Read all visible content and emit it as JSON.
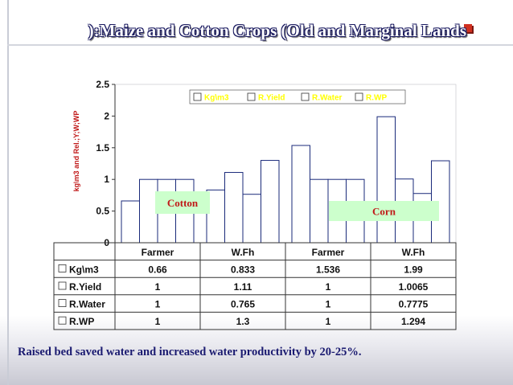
{
  "title": "):Maize and Cotton Crops (Old and Marginal Lands",
  "footer": "Raised bed saved water and increased water productivity by 20-25%.",
  "chart_data": {
    "type": "bar",
    "categories": [
      "Farmer",
      "W.Fh",
      "Farmer",
      "W.Fh"
    ],
    "series": [
      {
        "name": "Kg\\m3",
        "values": [
          0.66,
          0.833,
          1.536,
          1.99
        ]
      },
      {
        "name": "R.Yield",
        "values": [
          1,
          1.11,
          1,
          1.0065
        ]
      },
      {
        "name": "R.Water",
        "values": [
          1,
          0.765,
          1,
          0.7775
        ]
      },
      {
        "name": "R.WP",
        "values": [
          1,
          1.3,
          1,
          1.294
        ]
      }
    ],
    "value_labels": [
      [
        "0.66",
        "0.833",
        "1.536",
        "1.99"
      ],
      [
        "1",
        "1.11",
        "1",
        "1.0065"
      ],
      [
        "1",
        "0.765",
        "1",
        "0.7775"
      ],
      [
        "1",
        "1.3",
        "1",
        "1.294"
      ]
    ],
    "ylabel": "kg\\m3 and Rel.;Y;W;WP",
    "ylim": [
      0,
      2.5
    ],
    "yticks": [
      "0",
      "0.5",
      "1",
      "1.5",
      "2",
      "2.5"
    ],
    "legend_position": "top-right",
    "annotations": [
      "Cotton",
      "Corn"
    ],
    "grid": false,
    "data_table": true,
    "colors": {
      "bar_fill": "#ffffff",
      "bar_stroke": "#1a2a7a",
      "legend_text": "#ffff00",
      "label_box": "#ccffcc",
      "label_text": "#c01818"
    }
  }
}
